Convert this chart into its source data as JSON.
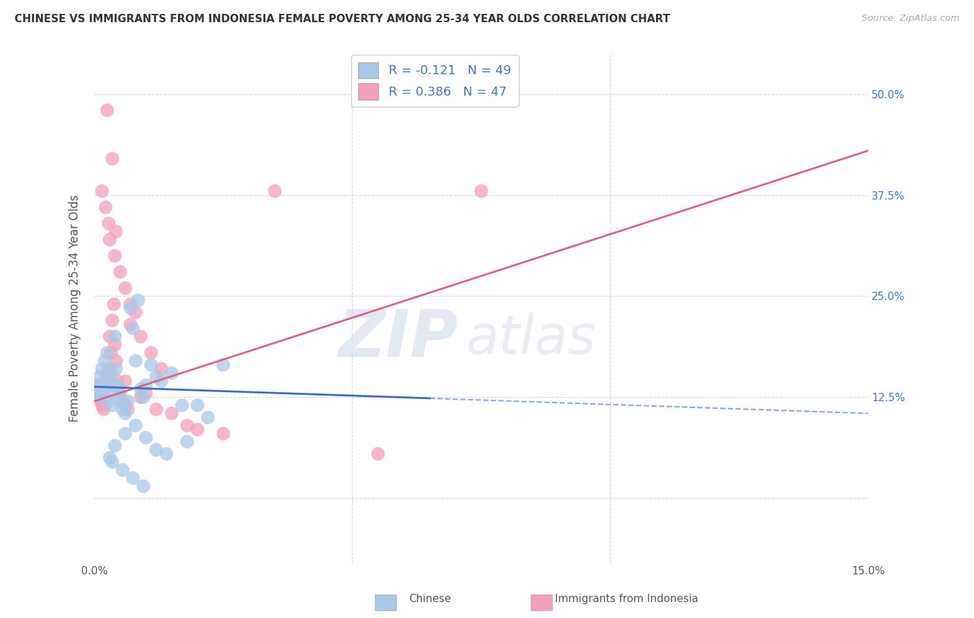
{
  "title": "CHINESE VS IMMIGRANTS FROM INDONESIA FEMALE POVERTY AMONG 25-34 YEAR OLDS CORRELATION CHART",
  "source": "Source: ZipAtlas.com",
  "ylabel": "Female Poverty Among 25-34 Year Olds",
  "xlim": [
    0.0,
    15.0
  ],
  "ylim": [
    -8.0,
    55.0
  ],
  "xticks": [
    0.0,
    5.0,
    10.0,
    15.0
  ],
  "xticklabels": [
    "0.0%",
    "",
    "",
    "15.0%"
  ],
  "yticks": [
    0.0,
    12.5,
    25.0,
    37.5,
    50.0
  ],
  "yticklabels_right": [
    "",
    "12.5%",
    "25.0%",
    "37.5%",
    "50.0%"
  ],
  "chinese_color": "#a8c8e8",
  "indonesia_color": "#f4a0b8",
  "chinese_R": -0.121,
  "chinese_N": 49,
  "indonesia_R": 0.386,
  "indonesia_N": 47,
  "legend_label_chinese": "Chinese",
  "legend_label_indonesia": "Immigrants from Indonesia",
  "watermark_zip": "ZIP",
  "watermark_atlas": "atlas",
  "background_color": "#ffffff",
  "grid_color": "#d8d8d8",
  "chinese_trend_x0": 0.0,
  "chinese_trend_y0": 13.8,
  "chinese_trend_x1": 15.0,
  "chinese_trend_y1": 10.5,
  "chinese_solid_x1": 6.5,
  "indonesia_trend_x0": 0.0,
  "indonesia_trend_y0": 12.0,
  "indonesia_trend_x1": 15.0,
  "indonesia_trend_y1": 43.0,
  "chinese_scatter_x": [
    0.05,
    0.07,
    0.1,
    0.12,
    0.15,
    0.18,
    0.2,
    0.22,
    0.25,
    0.28,
    0.3,
    0.32,
    0.35,
    0.38,
    0.4,
    0.42,
    0.45,
    0.48,
    0.5,
    0.55,
    0.6,
    0.65,
    0.7,
    0.75,
    0.8,
    0.85,
    0.9,
    0.95,
    1.0,
    1.1,
    1.2,
    1.3,
    1.5,
    1.7,
    2.0,
    2.2,
    2.5,
    0.3,
    0.4,
    0.6,
    0.8,
    1.0,
    1.2,
    1.4,
    1.8,
    0.35,
    0.55,
    0.75,
    0.95
  ],
  "chinese_scatter_y": [
    14.0,
    13.0,
    15.0,
    12.5,
    16.0,
    13.5,
    17.0,
    14.5,
    18.0,
    12.0,
    13.0,
    15.5,
    11.5,
    14.0,
    20.0,
    16.0,
    14.0,
    13.0,
    12.0,
    11.0,
    10.5,
    12.0,
    23.5,
    21.0,
    17.0,
    24.5,
    13.5,
    12.5,
    14.0,
    16.5,
    15.0,
    14.5,
    15.5,
    11.5,
    11.5,
    10.0,
    16.5,
    5.0,
    6.5,
    8.0,
    9.0,
    7.5,
    6.0,
    5.5,
    7.0,
    4.5,
    3.5,
    2.5,
    1.5
  ],
  "indonesia_scatter_x": [
    0.05,
    0.08,
    0.1,
    0.12,
    0.15,
    0.18,
    0.2,
    0.25,
    0.28,
    0.3,
    0.32,
    0.35,
    0.38,
    0.4,
    0.42,
    0.45,
    0.5,
    0.55,
    0.6,
    0.65,
    0.7,
    0.8,
    0.9,
    1.0,
    1.2,
    1.5,
    1.8,
    2.0,
    2.5,
    0.3,
    0.4,
    0.5,
    0.6,
    0.7,
    0.9,
    1.1,
    1.3,
    0.25,
    0.35,
    3.5,
    7.5,
    0.15,
    0.22,
    0.28,
    0.42,
    5.5,
    0.6
  ],
  "indonesia_scatter_y": [
    14.0,
    13.0,
    12.5,
    12.0,
    11.5,
    11.0,
    13.5,
    15.0,
    16.0,
    20.0,
    18.0,
    22.0,
    24.0,
    19.0,
    17.0,
    14.5,
    13.0,
    12.0,
    11.5,
    11.0,
    21.5,
    23.0,
    12.5,
    13.0,
    11.0,
    10.5,
    9.0,
    8.5,
    8.0,
    32.0,
    30.0,
    28.0,
    26.0,
    24.0,
    20.0,
    18.0,
    16.0,
    48.0,
    42.0,
    38.0,
    38.0,
    38.0,
    36.0,
    34.0,
    33.0,
    5.5,
    14.5
  ]
}
